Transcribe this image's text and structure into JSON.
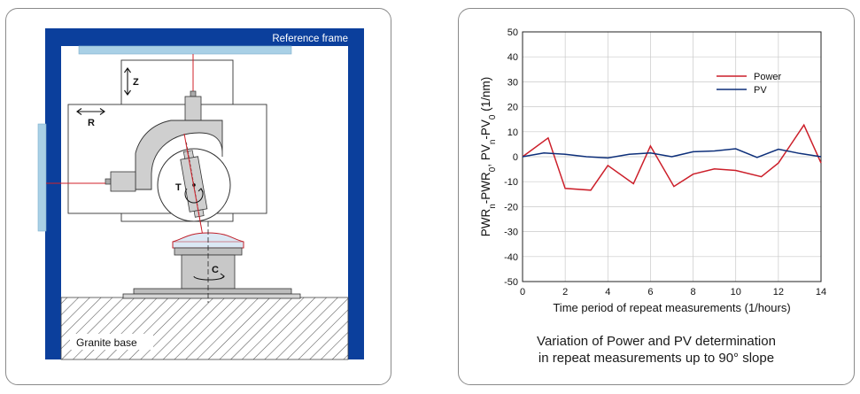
{
  "diagram": {
    "reference_frame_label": "Reference frame",
    "granite_base_label": "Granite base",
    "axis_z_label": "Z",
    "axis_r_label": "R",
    "axis_t_label": "T",
    "axis_c_label": "C",
    "colors": {
      "frame_blue": "#0b3f9c",
      "reference_bar": "#a9d0e6",
      "beam_red": "#d0202a"
    }
  },
  "chart_data": {
    "type": "line",
    "x": [
      0,
      1,
      2,
      3,
      4,
      5,
      6,
      7,
      8,
      9,
      10,
      11,
      12,
      13,
      14
    ],
    "series": [
      {
        "name": "Power",
        "color": "#cc1f2a",
        "x": [
          0,
          1.2,
          2,
          3.2,
          4,
          5.2,
          6,
          7.1,
          8,
          9,
          10,
          11.2,
          12,
          13.2,
          14
        ],
        "values": [
          0,
          7.5,
          -12.7,
          -13.4,
          -3.5,
          -10.8,
          4.3,
          -11.9,
          -7,
          -4.9,
          -5.5,
          -8,
          -2.5,
          12.7,
          -2.5
        ]
      },
      {
        "name": "PV",
        "color": "#0d2f7a",
        "x": [
          0,
          1,
          2,
          3,
          4,
          5,
          6,
          7,
          8,
          9,
          10,
          11,
          12,
          13,
          14
        ],
        "values": [
          0,
          1.5,
          1,
          0,
          -0.5,
          1,
          1.5,
          0,
          2,
          2.3,
          3.2,
          -0.3,
          3,
          1.3,
          0
        ]
      }
    ],
    "xlabel": "Time period of repeat measurements  (1/hours)",
    "ylabel": "PWRn-PWR0, PVn-PV0 (1/nm)",
    "xlim": [
      0,
      14
    ],
    "ylim": [
      -50,
      50
    ],
    "xticks": [
      0,
      2,
      4,
      6,
      8,
      10,
      12,
      14
    ],
    "yticks": [
      50,
      40,
      30,
      20,
      10,
      0,
      -10,
      -20,
      -30,
      -40,
      -50
    ],
    "grid": true,
    "legend_position": "top-right"
  },
  "caption": {
    "line1": "Variation of Power and PV determination",
    "line2": "in repeat measurements up to 90° slope"
  }
}
